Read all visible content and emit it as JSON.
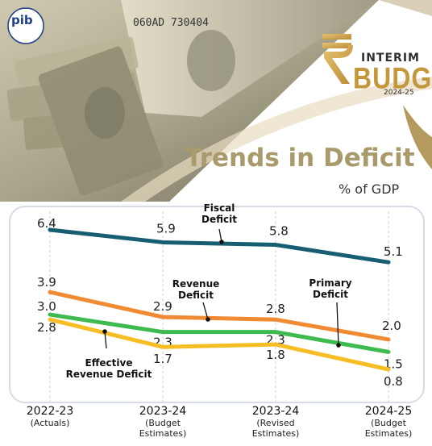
{
  "header": {
    "pib_logo": "pib",
    "note_serial": "060AD 730404",
    "brand": {
      "interim": "INTERIM",
      "budget": "BUDGET",
      "year": "2024-25",
      "rupee_symbol": "₹"
    }
  },
  "colors": {
    "title": "#a89a6b",
    "fiscal": "#175e73",
    "revenue": "#f08a33",
    "primary": "#3dbb4f",
    "effective": "#f7bd24",
    "gold": "#c4973d",
    "chart_border": "#d6dbe8"
  },
  "chart_data": {
    "type": "line",
    "title": "Trends in Deficit",
    "subtitle": "% of GDP",
    "categories": [
      {
        "year": "2022-23",
        "sub": [
          "(Actuals)"
        ]
      },
      {
        "year": "2023-24",
        "sub": [
          "(Budget",
          "Estimates)"
        ]
      },
      {
        "year": "2023-24",
        "sub": [
          "(Revised",
          "Estimates)"
        ]
      },
      {
        "year": "2024-25",
        "sub": [
          "(Budget",
          "Estimates)"
        ]
      }
    ],
    "series": [
      {
        "name": "Fiscal Deficit",
        "label_lines": [
          "Fiscal",
          "Deficit"
        ],
        "color": "#175e73",
        "values": [
          6.4,
          5.9,
          5.8,
          5.1
        ],
        "labels": [
          "6.4",
          "5.9",
          "5.8",
          "5.1"
        ]
      },
      {
        "name": "Revenue Deficit",
        "label_lines": [
          "Revenue",
          "Deficit"
        ],
        "color": "#f08a33",
        "values": [
          3.9,
          2.9,
          2.8,
          2.0
        ],
        "labels": [
          "3.9",
          "2.9",
          "2.8",
          "2.0"
        ]
      },
      {
        "name": "Primary Deficit",
        "label_lines": [
          "Primary",
          "Deficit"
        ],
        "color": "#3dbb4f",
        "values": [
          3.0,
          2.3,
          2.3,
          1.5
        ],
        "labels": [
          "3.0",
          "2.3",
          "2.3",
          "1.5"
        ]
      },
      {
        "name": "Effective Revenue Deficit",
        "label_lines": [
          "Effective",
          "Revenue Deficit"
        ],
        "color": "#f7bd24",
        "values": [
          2.8,
          1.7,
          1.8,
          0.8
        ],
        "labels": [
          "2.8",
          "1.7",
          "1.8",
          "0.8"
        ]
      }
    ],
    "ylim": [
      0,
      7
    ],
    "grid": true
  }
}
